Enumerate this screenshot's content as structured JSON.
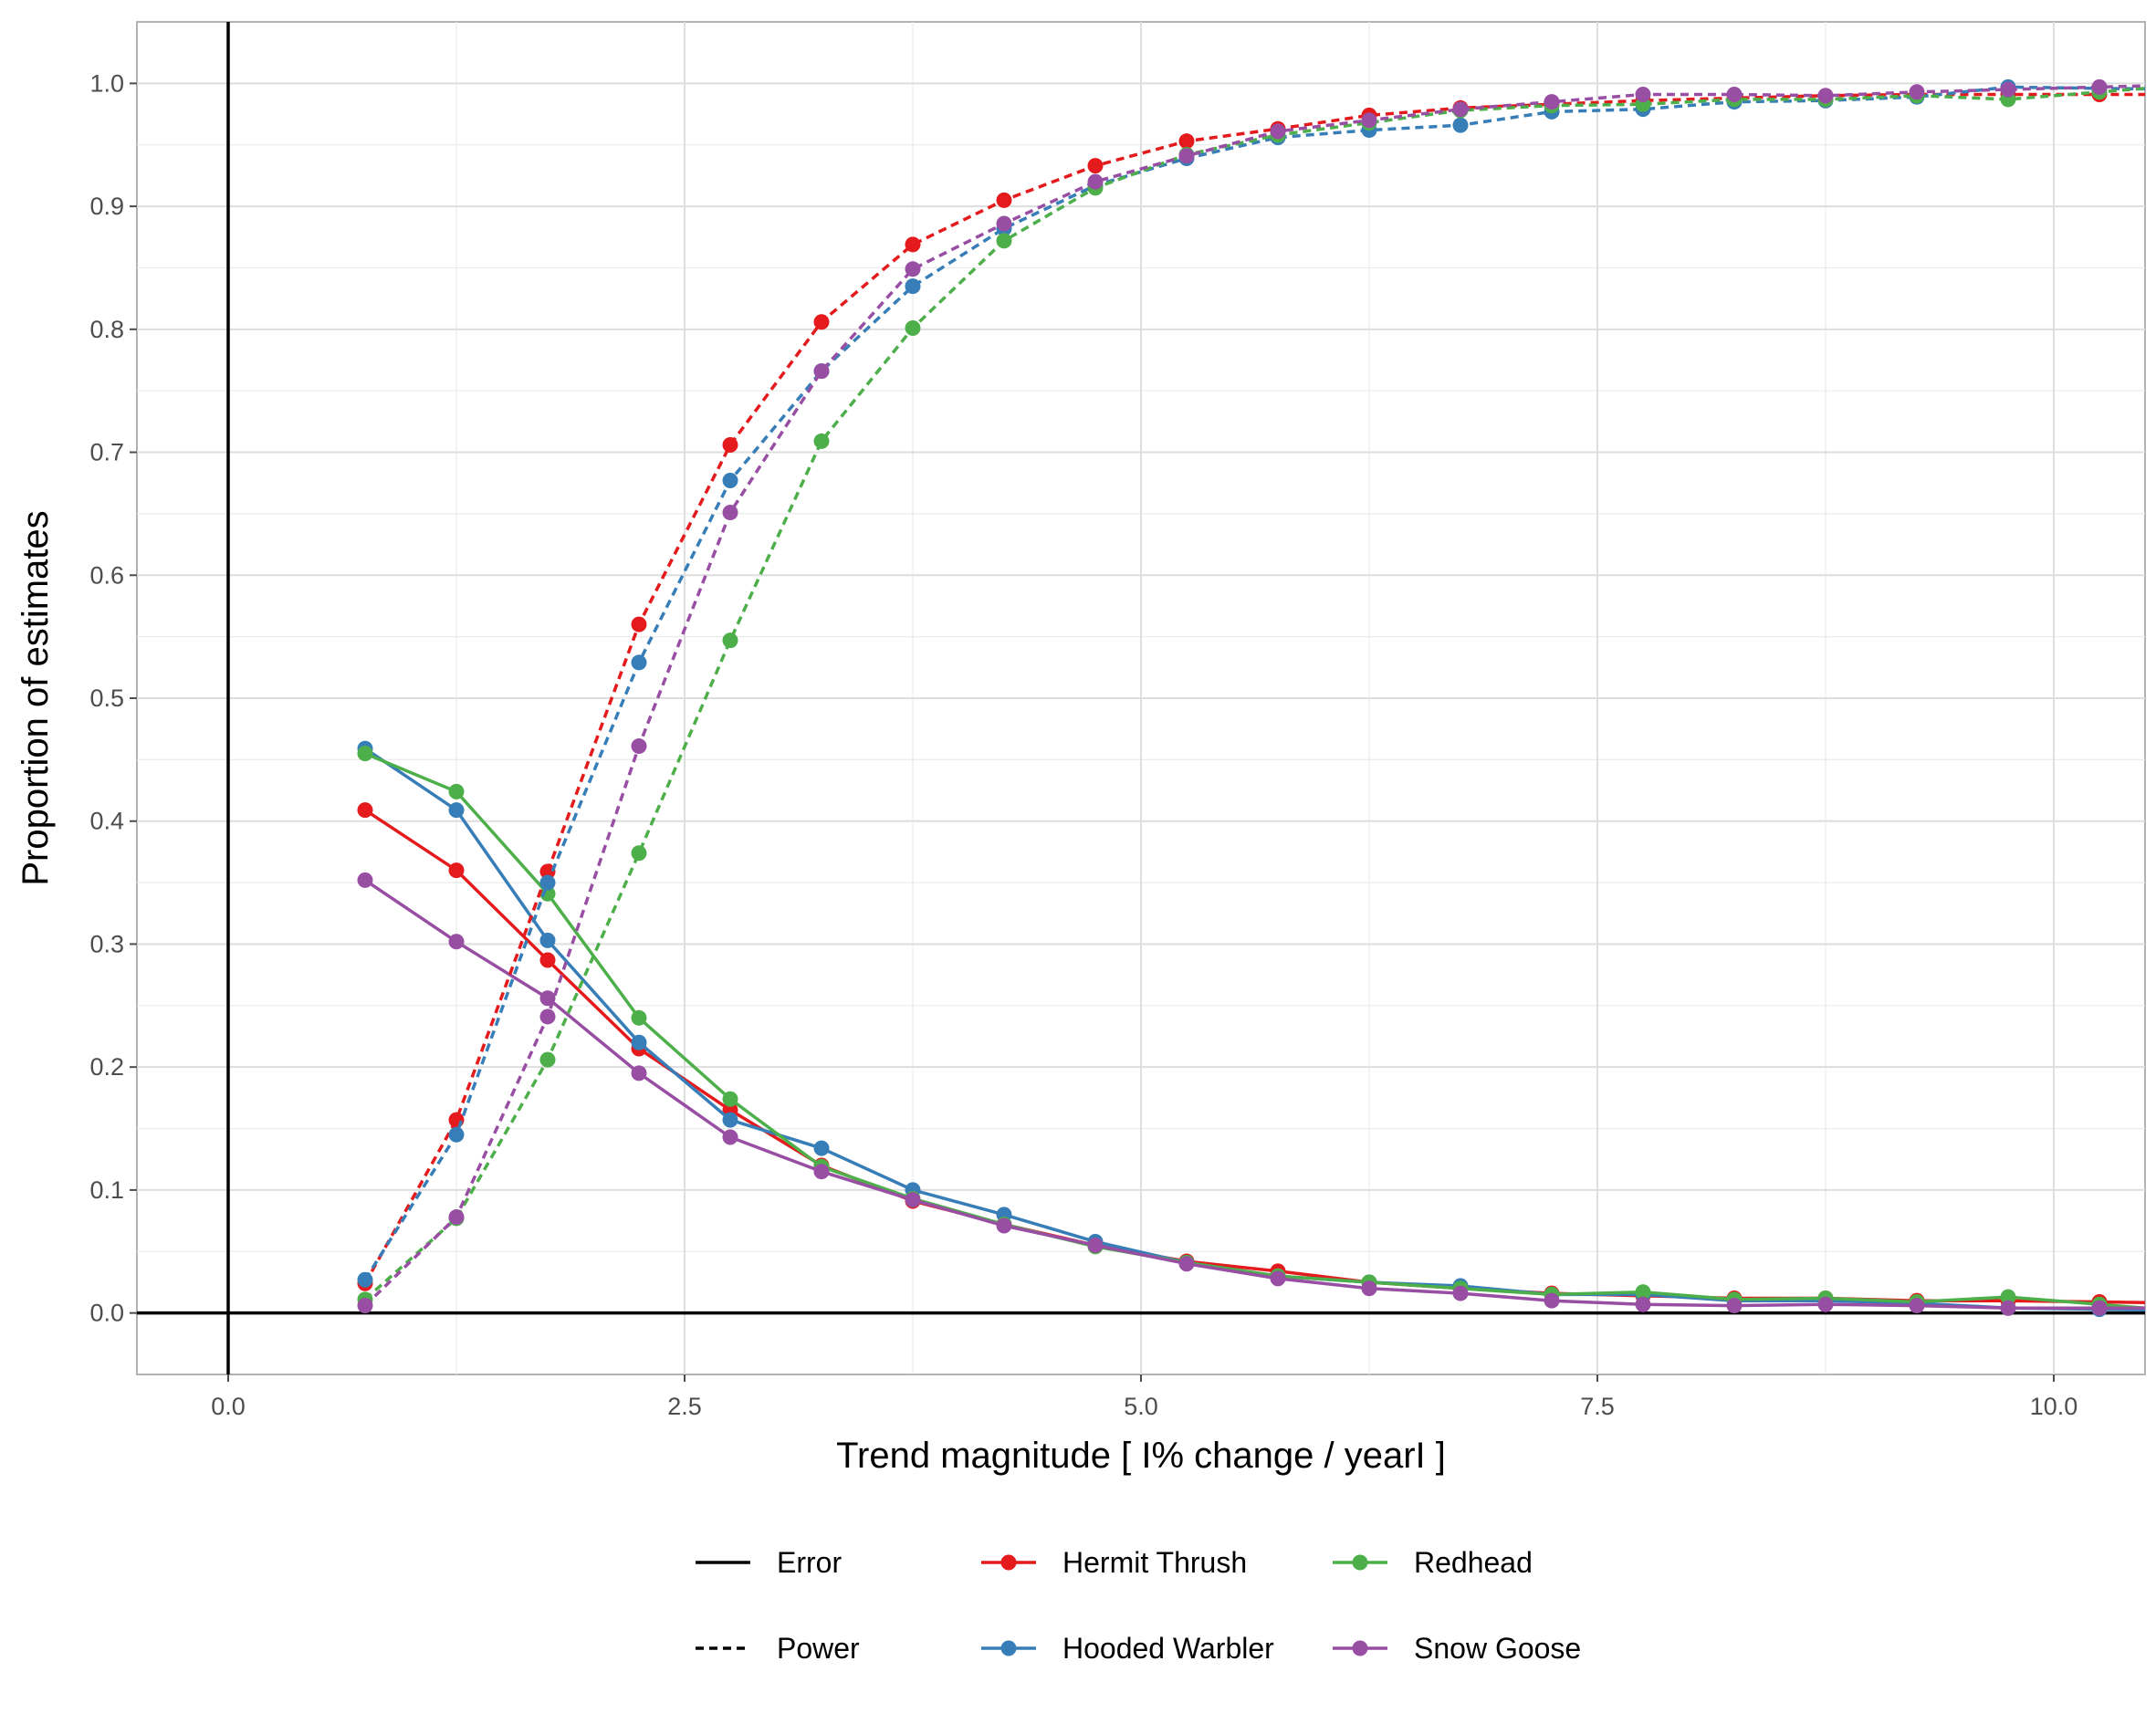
{
  "chart_data": {
    "type": "line",
    "xlabel": "Trend magnitude [ I% change / yearI ]",
    "ylabel": "Proportion of estimates",
    "xlim": [
      -0.5,
      10.5
    ],
    "ylim": [
      -0.05,
      1.05
    ],
    "x_ticks": [
      "0.0",
      "2.5",
      "5.0",
      "7.5",
      "10.0"
    ],
    "x_tick_values": [
      0,
      2.5,
      5,
      7.5,
      10
    ],
    "y_ticks": [
      "0.0",
      "0.1",
      "0.2",
      "0.3",
      "0.4",
      "0.5",
      "0.6",
      "0.7",
      "0.8",
      "0.9",
      "1.0"
    ],
    "y_tick_values": [
      0,
      0.1,
      0.2,
      0.3,
      0.4,
      0.5,
      0.6,
      0.7,
      0.8,
      0.9,
      1.0
    ],
    "grid": true,
    "legend_position": "bottom",
    "linetype_legend": [
      {
        "label": "Error",
        "dash": "solid"
      },
      {
        "label": "Power",
        "dash": "dotted"
      }
    ],
    "x": [
      0.75,
      1.25,
      1.75,
      2.25,
      2.75,
      3.25,
      3.75,
      4.25,
      4.75,
      5.25,
      5.75,
      6.25,
      6.75,
      7.25,
      7.75,
      8.25,
      8.75,
      9.25,
      9.75,
      10.25
    ],
    "series": [
      {
        "name": "Hermit Thrush",
        "color": "#e41a1c",
        "linetype": "solid",
        "metric": "Error",
        "values": [
          0.409,
          0.36,
          0.287,
          0.215,
          0.165,
          0.12,
          0.091,
          0.072,
          0.055,
          0.042,
          0.034,
          0.025,
          0.02,
          0.016,
          0.014,
          0.012,
          0.012,
          0.01,
          0.01,
          0.009
        ]
      },
      {
        "name": "Hooded Warbler",
        "color": "#377eb8",
        "linetype": "solid",
        "metric": "Error",
        "values": [
          0.459,
          0.409,
          0.303,
          0.22,
          0.157,
          0.134,
          0.1,
          0.08,
          0.058,
          0.041,
          0.03,
          0.025,
          0.022,
          0.015,
          0.015,
          0.01,
          0.01,
          0.008,
          0.004,
          0.003
        ]
      },
      {
        "name": "Redhead",
        "color": "#4daf4a",
        "linetype": "solid",
        "metric": "Error",
        "values": [
          0.455,
          0.424,
          0.341,
          0.24,
          0.174,
          0.119,
          0.093,
          0.072,
          0.054,
          0.041,
          0.03,
          0.025,
          0.02,
          0.015,
          0.017,
          0.011,
          0.012,
          0.009,
          0.013,
          0.007
        ]
      },
      {
        "name": "Snow Goose",
        "color": "#984ea3",
        "linetype": "solid",
        "metric": "Error",
        "values": [
          0.352,
          0.302,
          0.256,
          0.195,
          0.143,
          0.115,
          0.092,
          0.071,
          0.055,
          0.04,
          0.028,
          0.02,
          0.016,
          0.01,
          0.007,
          0.006,
          0.007,
          0.006,
          0.004,
          0.004
        ]
      },
      {
        "name": "Hermit Thrush",
        "color": "#e41a1c",
        "linetype": "dotted",
        "metric": "Power",
        "values": [
          0.024,
          0.157,
          0.359,
          0.56,
          0.706,
          0.806,
          0.869,
          0.905,
          0.933,
          0.953,
          0.963,
          0.974,
          0.98,
          0.983,
          0.986,
          0.988,
          0.99,
          0.991,
          0.991,
          0.991
        ]
      },
      {
        "name": "Hooded Warbler",
        "color": "#377eb8",
        "linetype": "dotted",
        "metric": "Power",
        "values": [
          0.027,
          0.145,
          0.35,
          0.529,
          0.677,
          0.766,
          0.835,
          0.882,
          0.917,
          0.939,
          0.956,
          0.962,
          0.966,
          0.977,
          0.979,
          0.985,
          0.986,
          0.989,
          0.997,
          0.996
        ]
      },
      {
        "name": "Redhead",
        "color": "#4daf4a",
        "linetype": "dotted",
        "metric": "Power",
        "values": [
          0.011,
          0.077,
          0.206,
          0.374,
          0.547,
          0.709,
          0.801,
          0.872,
          0.915,
          0.942,
          0.958,
          0.968,
          0.978,
          0.982,
          0.983,
          0.987,
          0.987,
          0.99,
          0.987,
          0.993
        ]
      },
      {
        "name": "Snow Goose",
        "color": "#984ea3",
        "linetype": "dotted",
        "metric": "Power",
        "values": [
          0.006,
          0.078,
          0.241,
          0.461,
          0.651,
          0.766,
          0.849,
          0.886,
          0.92,
          0.941,
          0.961,
          0.97,
          0.979,
          0.985,
          0.991,
          0.991,
          0.99,
          0.993,
          0.995,
          0.997
        ]
      }
    ],
    "color_legend": [
      {
        "label": "Hermit Thrush",
        "color": "#e41a1c"
      },
      {
        "label": "Hooded Warbler",
        "color": "#377eb8"
      },
      {
        "label": "Redhead",
        "color": "#4daf4a"
      },
      {
        "label": "Snow Goose",
        "color": "#984ea3"
      }
    ]
  }
}
